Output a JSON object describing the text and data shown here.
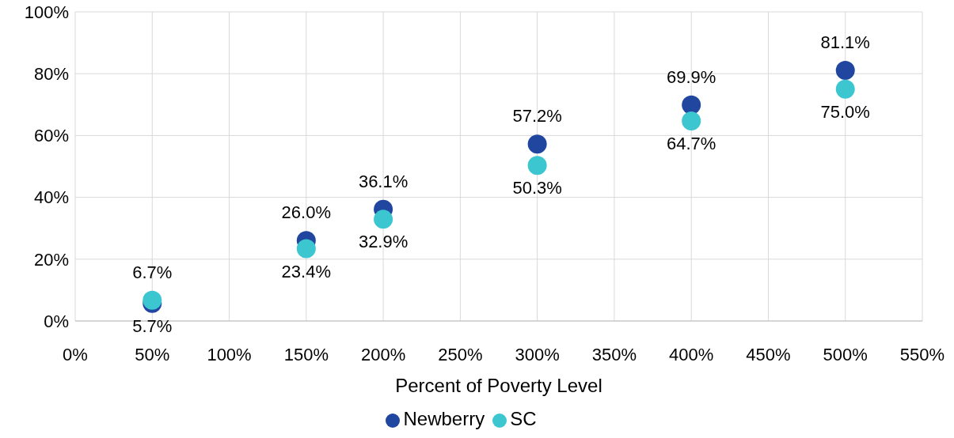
{
  "chart_data": {
    "type": "scatter",
    "xlabel": "Percent of Poverty Level",
    "x": [
      50,
      150,
      200,
      300,
      400,
      500
    ],
    "series": [
      {
        "name": "Newberry",
        "color": "#2146a0",
        "values": [
          5.7,
          26.0,
          36.1,
          57.2,
          69.9,
          81.1
        ],
        "value_labels": [
          "5.7%",
          "26.0%",
          "36.1%",
          "57.2%",
          "69.9%",
          "81.1%"
        ]
      },
      {
        "name": "SC",
        "color": "#3cc6d0",
        "values": [
          6.7,
          23.4,
          32.9,
          50.3,
          64.7,
          75.0
        ],
        "value_labels": [
          "6.7%",
          "23.4%",
          "32.9%",
          "50.3%",
          "64.7%",
          "75.0%"
        ]
      }
    ],
    "xlim": [
      0,
      550
    ],
    "xticks": [
      {
        "value": 0,
        "label": "0%"
      },
      {
        "value": 50,
        "label": "50%"
      },
      {
        "value": 100,
        "label": "100%"
      },
      {
        "value": 150,
        "label": "150%"
      },
      {
        "value": 200,
        "label": "200%"
      },
      {
        "value": 250,
        "label": "250%"
      },
      {
        "value": 300,
        "label": "300%"
      },
      {
        "value": 350,
        "label": "350%"
      },
      {
        "value": 400,
        "label": "400%"
      },
      {
        "value": 450,
        "label": "450%"
      },
      {
        "value": 500,
        "label": "500%"
      },
      {
        "value": 550,
        "label": "550%"
      }
    ],
    "ylim": [
      0,
      100
    ],
    "yticks": [
      {
        "value": 0,
        "label": "0%"
      },
      {
        "value": 20,
        "label": "20%"
      },
      {
        "value": 40,
        "label": "40%"
      },
      {
        "value": 60,
        "label": "60%"
      },
      {
        "value": 80,
        "label": "80%"
      },
      {
        "value": 100,
        "label": "100%"
      }
    ],
    "grid": true,
    "legend": "bottom",
    "marker": "circle"
  }
}
